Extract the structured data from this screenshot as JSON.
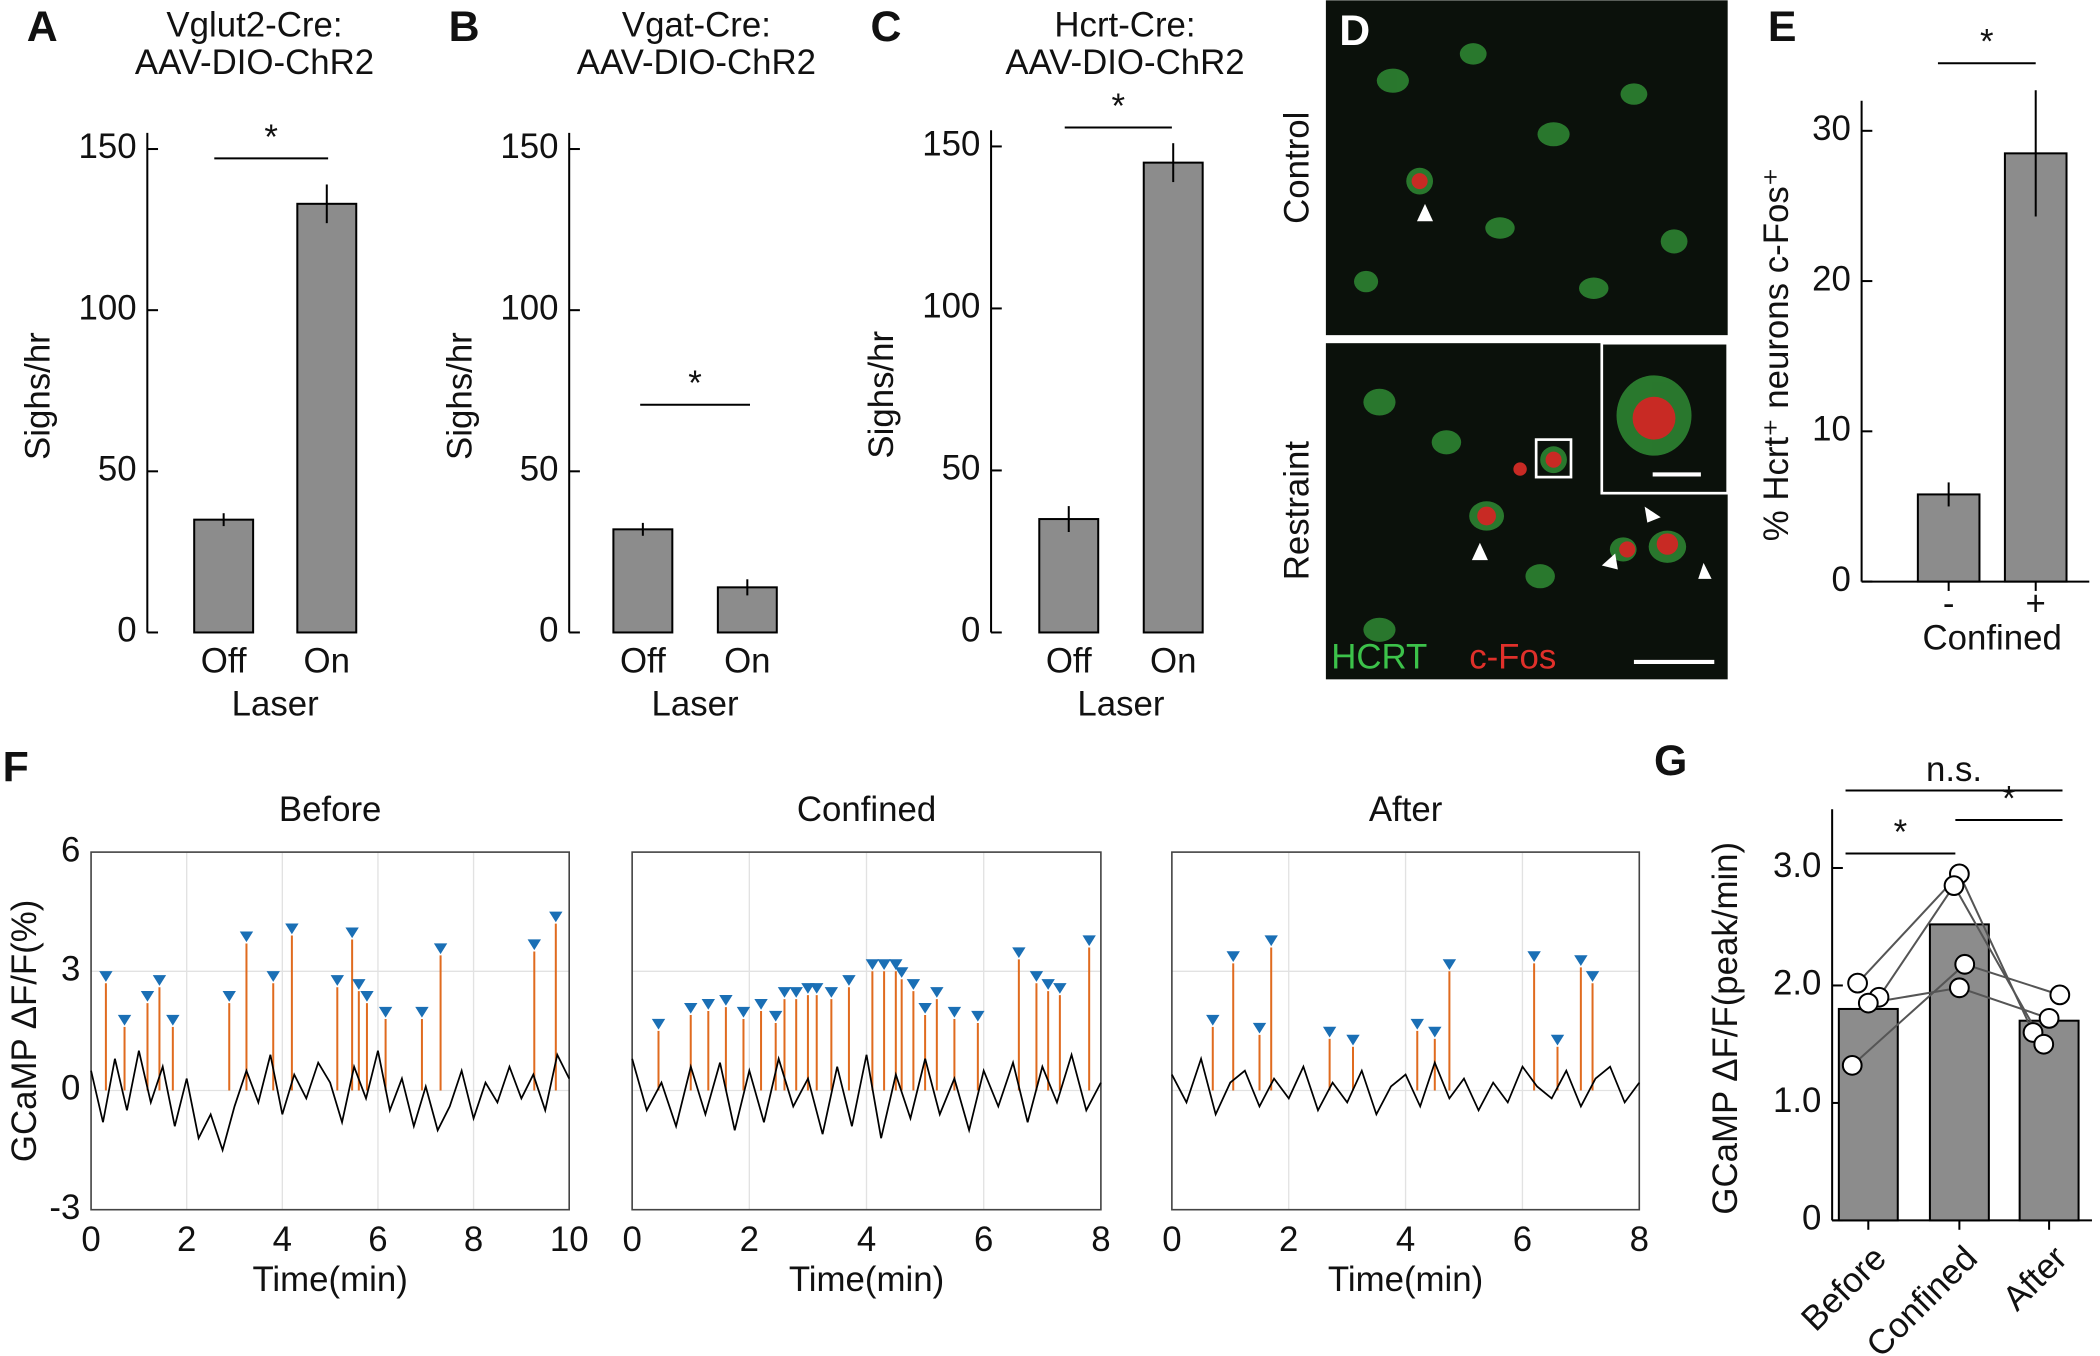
{
  "chart_data": [
    {
      "type": "bar",
      "letter": "A",
      "title": [
        "Vglut2-Cre:",
        "AAV-DIO-ChR2"
      ],
      "ylabel": "Sighs/hr",
      "xlabel": "Laser",
      "categories": [
        "Off",
        "On"
      ],
      "values": [
        35,
        133
      ],
      "errors": [
        2,
        6
      ],
      "color": "#8c8c8c",
      "ylim": [
        0,
        155
      ],
      "yticks": [
        0,
        50,
        100,
        150
      ],
      "significance": [
        "*"
      ]
    },
    {
      "type": "bar",
      "letter": "B",
      "title": [
        "Vgat-Cre:",
        "AAV-DIO-ChR2"
      ],
      "ylabel": "Sighs/hr",
      "xlabel": "Laser",
      "categories": [
        "Off",
        "On"
      ],
      "values": [
        32,
        14
      ],
      "errors": [
        2,
        2.5
      ],
      "color": "#8c8c8c",
      "ylim": [
        0,
        155
      ],
      "yticks": [
        0,
        50,
        100,
        150
      ],
      "significance": [
        "*"
      ]
    },
    {
      "type": "bar",
      "letter": "C",
      "title": [
        "Hcrt-Cre:",
        "AAV-DIO-ChR2"
      ],
      "ylabel": "Sighs/hr",
      "xlabel": "Laser",
      "categories": [
        "Off",
        "On"
      ],
      "values": [
        35,
        145
      ],
      "errors": [
        4,
        6
      ],
      "color": "#8c8c8c",
      "ylim": [
        0,
        155
      ],
      "yticks": [
        0,
        50,
        100,
        150
      ],
      "significance": [
        "*"
      ]
    },
    {
      "type": "bar",
      "letter": "E",
      "ylabel": "% Hcrt⁺ neurons c-Fos⁺",
      "xlabel": "Confined",
      "categories": [
        "-",
        "+"
      ],
      "values": [
        5.8,
        28.5
      ],
      "errors": [
        0.8,
        4.2
      ],
      "color": "#8c8c8c",
      "ylim": [
        0,
        32
      ],
      "yticks": [
        0,
        10,
        20,
        30
      ],
      "significance": [
        "*"
      ]
    },
    {
      "type": "line",
      "letter": "F",
      "title": "Before",
      "ylabel": "GCaMP ΔF/F(%)",
      "xlabel": "Time(min)",
      "xlim": [
        0,
        10
      ],
      "xticks": [
        0,
        2,
        4,
        6,
        8,
        10
      ],
      "ylim": [
        -3,
        6
      ],
      "yticks": [
        -3,
        0,
        3,
        6
      ],
      "grid": true,
      "color": "#000000",
      "peak_color": "#1a6fb5",
      "stem_color": "#e06b1f",
      "x": [
        0,
        0.25,
        0.5,
        0.75,
        1,
        1.25,
        1.5,
        1.75,
        2,
        2.25,
        2.5,
        2.75,
        3,
        3.25,
        3.5,
        3.75,
        4,
        4.25,
        4.5,
        4.75,
        5,
        5.25,
        5.5,
        5.75,
        6,
        6.25,
        6.5,
        6.75,
        7,
        7.25,
        7.5,
        7.75,
        8,
        8.25,
        8.5,
        8.75,
        9,
        9.25,
        9.5,
        9.75,
        10
      ],
      "values": [
        0.5,
        -0.8,
        0.8,
        -0.5,
        1.0,
        -0.3,
        0.6,
        -0.9,
        0.3,
        -1.2,
        -0.6,
        -1.5,
        -0.4,
        0.5,
        -0.3,
        0.9,
        -0.6,
        0.4,
        -0.2,
        0.7,
        0.2,
        -0.8,
        0.6,
        -0.2,
        1.0,
        -0.5,
        0.3,
        -0.9,
        0.1,
        -1.0,
        -0.4,
        0.5,
        -0.7,
        0.2,
        -0.3,
        0.6,
        -0.2,
        0.4,
        -0.5,
        0.9,
        0.3
      ],
      "peaks": {
        "x": [
          0.31,
          0.7,
          1.18,
          1.43,
          1.71,
          2.89,
          3.25,
          3.81,
          4.2,
          5.15,
          5.46,
          5.6,
          5.77,
          6.16,
          6.92,
          7.31,
          9.27,
          9.72
        ],
        "values": [
          2.7,
          1.6,
          2.2,
          2.6,
          1.6,
          2.2,
          3.7,
          2.7,
          3.9,
          2.6,
          3.8,
          2.5,
          2.2,
          1.8,
          1.8,
          3.4,
          3.5,
          4.2
        ]
      }
    },
    {
      "type": "line",
      "title": "Confined",
      "xlabel": "Time(min)",
      "xlim": [
        0,
        8
      ],
      "xticks": [
        0,
        2,
        4,
        6,
        8
      ],
      "ylim": [
        -3,
        6
      ],
      "yticks": [
        -3,
        0,
        3,
        6
      ],
      "grid": true,
      "color": "#000000",
      "peak_color": "#1a6fb5",
      "stem_color": "#e06b1f",
      "x": [
        0,
        0.25,
        0.5,
        0.75,
        1,
        1.25,
        1.5,
        1.75,
        2,
        2.25,
        2.5,
        2.75,
        3,
        3.25,
        3.5,
        3.75,
        4,
        4.25,
        4.5,
        4.75,
        5,
        5.25,
        5.5,
        5.75,
        6,
        6.25,
        6.5,
        6.75,
        7,
        7.25,
        7.5,
        7.75,
        8
      ],
      "values": [
        0.8,
        -0.5,
        0.2,
        -0.9,
        0.6,
        -0.6,
        0.7,
        -1.0,
        0.5,
        -0.8,
        0.8,
        -0.4,
        0.3,
        -1.1,
        0.6,
        -0.9,
        0.9,
        -1.2,
        0.4,
        -0.7,
        0.8,
        -0.6,
        0.3,
        -1.0,
        0.5,
        -0.4,
        0.7,
        -0.8,
        0.6,
        -0.3,
        0.9,
        -0.5,
        0.2
      ],
      "peaks": {
        "x": [
          0.45,
          1.0,
          1.3,
          1.6,
          1.9,
          2.2,
          2.45,
          2.6,
          2.8,
          3.0,
          3.15,
          3.4,
          3.7,
          4.1,
          4.3,
          4.5,
          4.6,
          4.8,
          5.0,
          5.2,
          5.5,
          5.9,
          6.6,
          6.9,
          7.1,
          7.3,
          7.8
        ],
        "values": [
          1.5,
          1.9,
          2.0,
          2.1,
          1.8,
          2.0,
          1.7,
          2.3,
          2.3,
          2.4,
          2.4,
          2.3,
          2.6,
          3.0,
          3.0,
          3.0,
          2.8,
          2.5,
          1.9,
          2.3,
          1.8,
          1.7,
          3.3,
          2.7,
          2.5,
          2.4,
          3.6
        ]
      }
    },
    {
      "type": "line",
      "title": "After",
      "xlabel": "Time(min)",
      "xlim": [
        0,
        8
      ],
      "xticks": [
        0,
        2,
        4,
        6,
        8
      ],
      "ylim": [
        -3,
        6
      ],
      "yticks": [
        -3,
        0,
        3,
        6
      ],
      "grid": true,
      "color": "#000000",
      "peak_color": "#1a6fb5",
      "stem_color": "#e06b1f",
      "x": [
        0,
        0.25,
        0.5,
        0.75,
        1,
        1.25,
        1.5,
        1.75,
        2,
        2.25,
        2.5,
        2.75,
        3,
        3.25,
        3.5,
        3.75,
        4,
        4.25,
        4.5,
        4.75,
        5,
        5.25,
        5.5,
        5.75,
        6,
        6.25,
        6.5,
        6.75,
        7,
        7.25,
        7.5,
        7.75,
        8
      ],
      "values": [
        0.4,
        -0.3,
        0.8,
        -0.6,
        0.2,
        0.5,
        -0.4,
        0.3,
        -0.2,
        0.6,
        -0.5,
        0.2,
        -0.3,
        0.5,
        -0.6,
        0.1,
        0.4,
        -0.4,
        0.7,
        -0.2,
        0.3,
        -0.5,
        0.2,
        -0.3,
        0.6,
        0.1,
        -0.2,
        0.5,
        -0.4,
        0.3,
        0.6,
        -0.3,
        0.2
      ],
      "peaks": {
        "x": [
          0.7,
          1.05,
          1.5,
          1.7,
          2.7,
          3.1,
          4.2,
          4.5,
          4.75,
          6.2,
          6.6,
          7.0,
          7.2
        ],
        "values": [
          1.6,
          3.2,
          1.4,
          3.6,
          1.3,
          1.1,
          1.5,
          1.3,
          3.0,
          3.2,
          1.1,
          3.1,
          2.7
        ]
      }
    },
    {
      "type": "bar",
      "letter": "G",
      "ylabel": "GCaMP ΔF/F(peak/min)",
      "categories": [
        "Before",
        "Confined",
        "After"
      ],
      "values": [
        1.8,
        2.52,
        1.7
      ],
      "color": "#8c8c8c",
      "ylim": [
        0,
        3.5
      ],
      "yticks": [
        0,
        {
          "value": 1,
          "label": "1.0"
        },
        {
          "value": 2,
          "label": "2.0"
        },
        {
          "value": 3,
          "label": "3.0"
        }
      ],
      "individuals": [
        [
          2.02,
          2.95,
          1.6
        ],
        [
          1.9,
          2.85,
          1.5
        ],
        [
          1.32,
          2.18,
          1.92
        ],
        [
          1.85,
          1.98,
          1.72
        ]
      ],
      "significance": [
        "n.s.",
        "*",
        "*"
      ]
    }
  ],
  "image_panel": {
    "letter": "D",
    "top_label": "Control",
    "bottom_label": "Restraint",
    "stain_1": "HCRT",
    "stain_2": "c-Fos"
  }
}
